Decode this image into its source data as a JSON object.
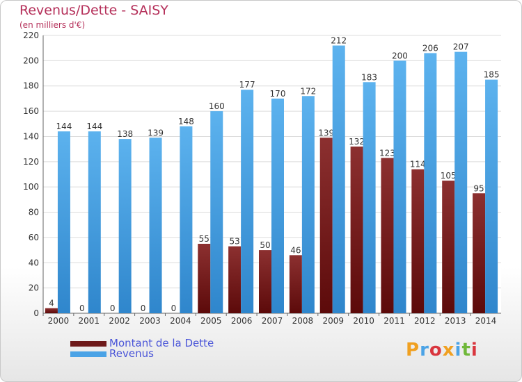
{
  "chart_data": {
    "type": "bar",
    "title": "Revenus/Dette - SAISY",
    "subtitle": "(en milliers d'€)",
    "categories": [
      "2000",
      "2001",
      "2002",
      "2003",
      "2004",
      "2005",
      "2006",
      "2007",
      "2008",
      "2009",
      "2010",
      "2011",
      "2012",
      "2013",
      "2014"
    ],
    "series": [
      {
        "name": "Montant de la Dette",
        "color": "#6e1a1a",
        "values": [
          4,
          0,
          0,
          0,
          0,
          55,
          53,
          50,
          46,
          139,
          132,
          123,
          114,
          105,
          95
        ]
      },
      {
        "name": "Revenus",
        "color": "#4ba3e6",
        "values": [
          144,
          144,
          138,
          139,
          148,
          160,
          177,
          170,
          172,
          212,
          183,
          200,
          206,
          207,
          185
        ]
      }
    ],
    "ylim": [
      0,
      220
    ],
    "yticks": [
      0,
      20,
      40,
      60,
      80,
      100,
      120,
      140,
      160,
      180,
      200,
      220
    ],
    "grid": true,
    "legend_position": "bottom-left"
  },
  "logo": {
    "text": "Proxiti",
    "colors": [
      "#f0a020",
      "#4ba3e6",
      "#d9363e",
      "#f0a020",
      "#4ba3e6",
      "#70b83a",
      "#d9363e"
    ]
  }
}
